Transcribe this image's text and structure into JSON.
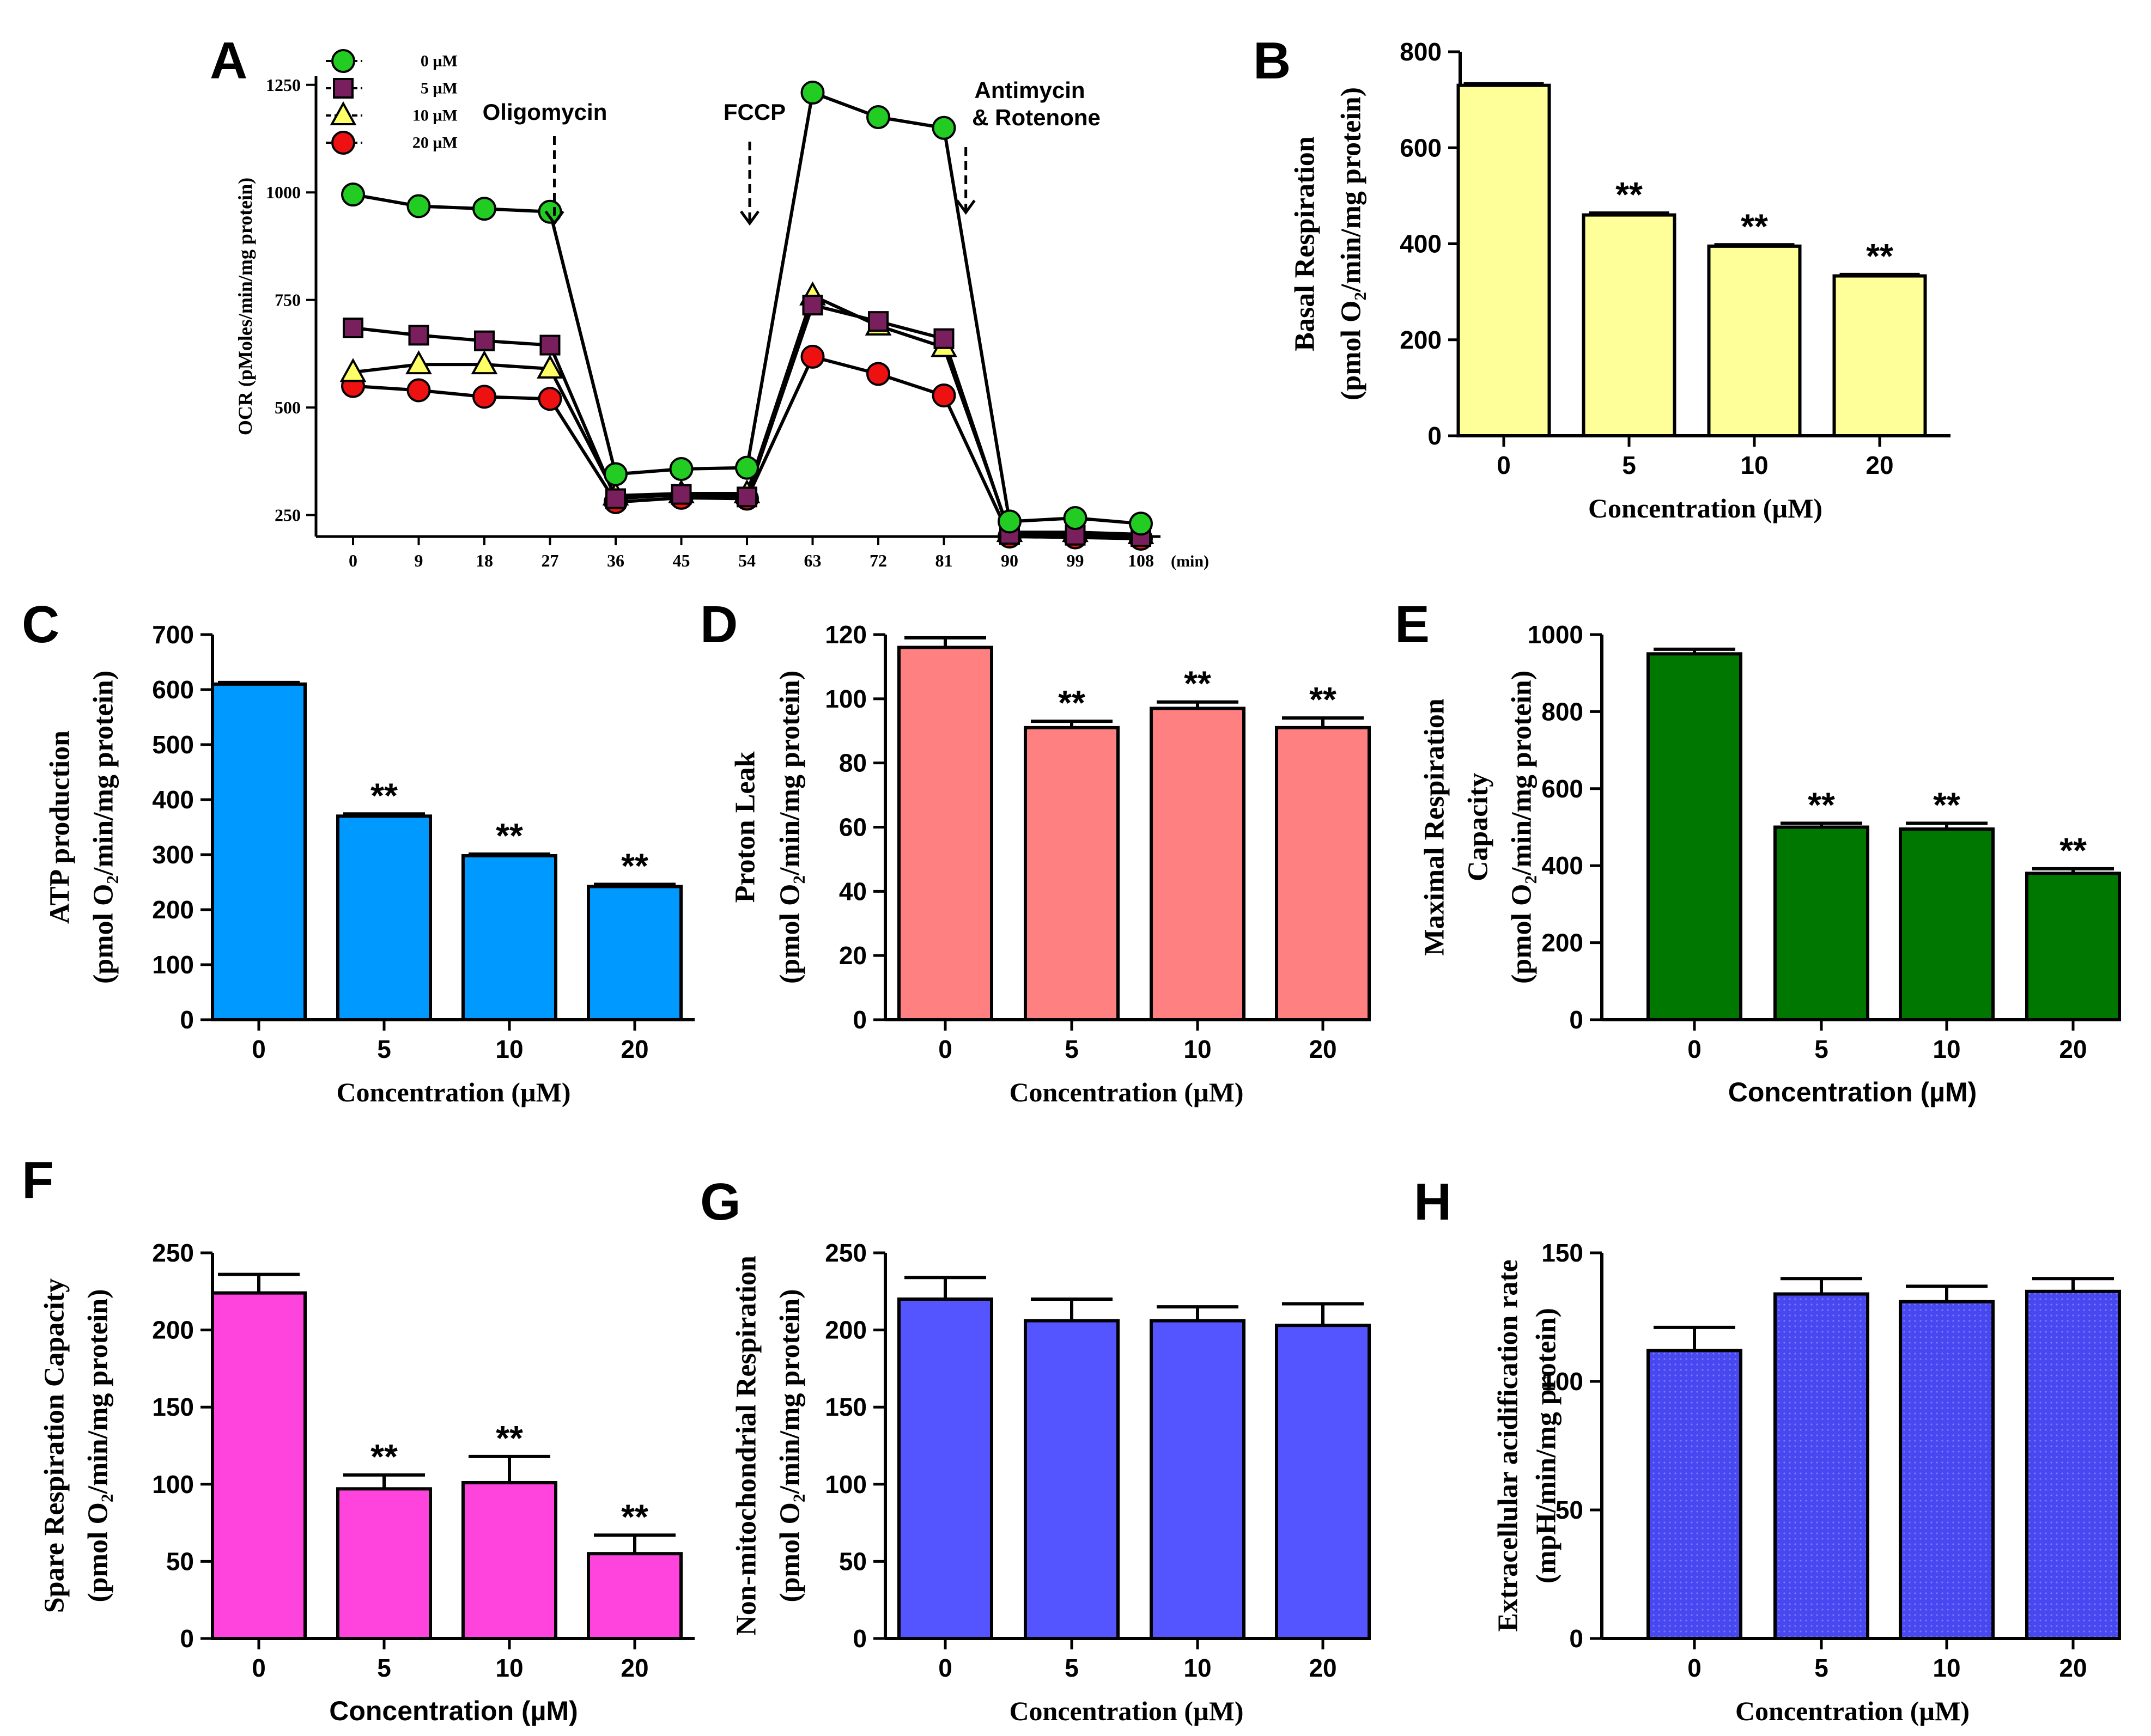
{
  "figure": {
    "bar_colors": {
      "B": "#ffff99",
      "C": "#0099ff",
      "D": "#ff8080",
      "E": "#007700",
      "F": "#ff44dd",
      "G": "#5555ff",
      "H": "#4444ee"
    },
    "marker_colors": {
      "0 µM": "#22cc22",
      "5 µM": "#7a1f5e",
      "10 µM": "#ffff66",
      "20 µM": "#ee1111"
    }
  },
  "chart_data": [
    {
      "panel": "A",
      "type": "line",
      "ylabel": "OCR (pMoles/min/mg protein)",
      "x_unit": "(min)",
      "x": [
        0,
        9,
        18,
        27,
        36,
        45,
        54,
        63,
        72,
        81,
        90,
        99,
        108
      ],
      "ylim": [
        200,
        1270
      ],
      "yticks": [
        250,
        500,
        750,
        1000,
        1250
      ],
      "series": [
        {
          "name": "0 µM",
          "marker": "circle",
          "values": [
            995,
            968,
            962,
            955,
            345,
            357,
            360,
            1232,
            1175,
            1150,
            235,
            243,
            230
          ]
        },
        {
          "name": "5 µM",
          "marker": "square",
          "values": [
            685,
            668,
            655,
            645,
            288,
            298,
            292,
            738,
            700,
            660,
            205,
            203,
            200
          ]
        },
        {
          "name": "10 µM",
          "marker": "triangle",
          "values": [
            582,
            600,
            600,
            590,
            295,
            300,
            300,
            760,
            690,
            640,
            210,
            210,
            205
          ]
        },
        {
          "name": "20 µM",
          "marker": "circle",
          "values": [
            550,
            540,
            525,
            520,
            280,
            290,
            288,
            618,
            578,
            528,
            200,
            198,
            195
          ]
        }
      ],
      "annotations": [
        {
          "text": "Oligomycin",
          "x": 27
        },
        {
          "text": "FCCP",
          "x": 54
        },
        {
          "text": "Antimycin",
          "x": 84,
          "line2": "& Rotenone"
        }
      ]
    },
    {
      "panel": "B",
      "type": "bar",
      "categories": [
        "0",
        "5",
        "10",
        "20"
      ],
      "values": [
        730,
        460,
        395,
        333
      ],
      "errors": [
        3,
        4,
        3,
        3
      ],
      "significance": [
        "",
        "**",
        "**",
        "**"
      ],
      "ylim": [
        0,
        800
      ],
      "yticks": [
        0,
        200,
        400,
        600,
        800
      ],
      "ylabel": [
        "Basal Respiration",
        "(pmol O₂/min/mg protein)"
      ],
      "xlabel": "Concentration (µM)"
    },
    {
      "panel": "C",
      "type": "bar",
      "categories": [
        "0",
        "5",
        "10",
        "20"
      ],
      "values": [
        610,
        370,
        298,
        242
      ],
      "errors": [
        3,
        4,
        3,
        4
      ],
      "significance": [
        "",
        "**",
        "**",
        "**"
      ],
      "ylim": [
        0,
        700
      ],
      "yticks": [
        0,
        100,
        200,
        300,
        400,
        500,
        600,
        700
      ],
      "ylabel": [
        "ATP production",
        "(pmol O₂/min/mg protein)"
      ],
      "xlabel": "Concentration (µM)"
    },
    {
      "panel": "D",
      "type": "bar",
      "categories": [
        "0",
        "5",
        "10",
        "20"
      ],
      "values": [
        116,
        91,
        97,
        91
      ],
      "errors": [
        3,
        2,
        2,
        3
      ],
      "significance": [
        "",
        "**",
        "**",
        "**"
      ],
      "ylim": [
        0,
        120
      ],
      "yticks": [
        0,
        20,
        40,
        60,
        80,
        100,
        120
      ],
      "ylabel": [
        "Proton Leak",
        "(pmol O₂/min/mg protein)"
      ],
      "xlabel": "Concentration (µM)"
    },
    {
      "panel": "E",
      "type": "bar",
      "categories": [
        "0",
        "5",
        "10",
        "20"
      ],
      "values": [
        950,
        500,
        495,
        380
      ],
      "errors": [
        12,
        10,
        15,
        12
      ],
      "significance": [
        "",
        "**",
        "**",
        "**"
      ],
      "ylim": [
        0,
        1000
      ],
      "yticks": [
        0,
        200,
        400,
        600,
        800,
        1000
      ],
      "ylabel": [
        "Maximal Respiration",
        "Capacity",
        "(pmol O₂/min/mg protein)"
      ],
      "xlabel": "Concentration (µM)"
    },
    {
      "panel": "F",
      "type": "bar",
      "categories": [
        "0",
        "5",
        "10",
        "20"
      ],
      "values": [
        224,
        97,
        101,
        55
      ],
      "errors": [
        12,
        9,
        17,
        12
      ],
      "significance": [
        "",
        "**",
        "**",
        "**"
      ],
      "ylim": [
        0,
        250
      ],
      "yticks": [
        0,
        50,
        100,
        150,
        200,
        250
      ],
      "ylabel": [
        "Spare Respiration Capacity",
        "(pmol O₂/min/mg protein)"
      ],
      "xlabel": "Concentration (µM)"
    },
    {
      "panel": "G",
      "type": "bar",
      "categories": [
        "0",
        "5",
        "10",
        "20"
      ],
      "values": [
        220,
        206,
        206,
        203
      ],
      "errors": [
        14,
        14,
        9,
        14
      ],
      "significance": [
        "",
        "",
        "",
        ""
      ],
      "ylim": [
        0,
        250
      ],
      "yticks": [
        0,
        50,
        100,
        150,
        200,
        250
      ],
      "ylabel": [
        "Non-mitochondrial Respiration",
        "(pmol O₂/min/mg protein)"
      ],
      "xlabel": "Concentration (µM)"
    },
    {
      "panel": "H",
      "type": "bar",
      "categories": [
        "0",
        "5",
        "10",
        "20"
      ],
      "values": [
        112,
        134,
        131,
        135
      ],
      "errors": [
        9,
        6,
        6,
        5
      ],
      "significance": [
        "",
        "",
        "",
        ""
      ],
      "ylim": [
        0,
        150
      ],
      "yticks": [
        0,
        50,
        100,
        150
      ],
      "ylabel": [
        "Extracellular acidification rate",
        "(mpH/min/mg protein)"
      ],
      "xlabel": "Concentration (µM)"
    }
  ]
}
